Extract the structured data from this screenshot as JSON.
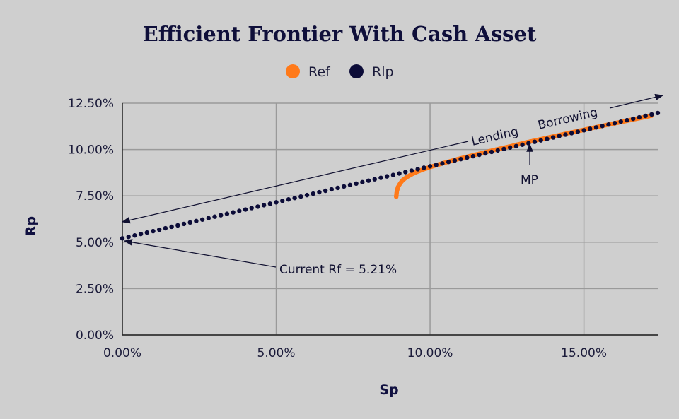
{
  "chart_data": {
    "type": "scatter",
    "title": "Efficient Frontier With Cash Asset",
    "xlabel": "Sp",
    "ylabel": "Rp",
    "xlim": [
      0,
      17.4
    ],
    "ylim": [
      0,
      12.5
    ],
    "x_ticks": [
      0,
      5,
      10,
      15
    ],
    "x_tick_labels": [
      "0.00%",
      "5.00%",
      "10.00%",
      "15.00%"
    ],
    "y_ticks": [
      0,
      2.5,
      5,
      7.5,
      10,
      12.5
    ],
    "y_tick_labels": [
      "0.00%",
      "2.50%",
      "5.00%",
      "7.50%",
      "10.00%",
      "12.50%"
    ],
    "grid": true,
    "legend_position": "top-center",
    "series": [
      {
        "name": "Ref",
        "color": "#ff7a1a",
        "x": [
          8.9,
          8.92,
          8.96,
          9.03,
          9.12,
          9.25,
          9.4,
          9.58,
          9.8,
          10.05,
          10.35,
          10.7,
          11.1,
          11.55,
          12.05,
          12.6,
          13.15,
          13.75,
          14.4,
          15.05,
          15.75,
          16.45,
          17.2
        ],
        "y": [
          7.45,
          7.75,
          7.98,
          8.18,
          8.36,
          8.52,
          8.66,
          8.8,
          8.94,
          9.08,
          9.23,
          9.39,
          9.57,
          9.75,
          9.96,
          10.17,
          10.39,
          10.61,
          10.85,
          11.08,
          11.33,
          11.57,
          11.83
        ]
      },
      {
        "name": "Rlp",
        "color": "#0c0c38",
        "x_start": 0,
        "x_end": 17.4,
        "point_count": 88,
        "rf": 5.21,
        "slope": 0.3885
      }
    ],
    "annotations": {
      "rf_label": "Current Rf = 5.21%",
      "mp_label": "MP",
      "lending_label": "Lending",
      "borrowing_label": "Borrowing"
    }
  }
}
